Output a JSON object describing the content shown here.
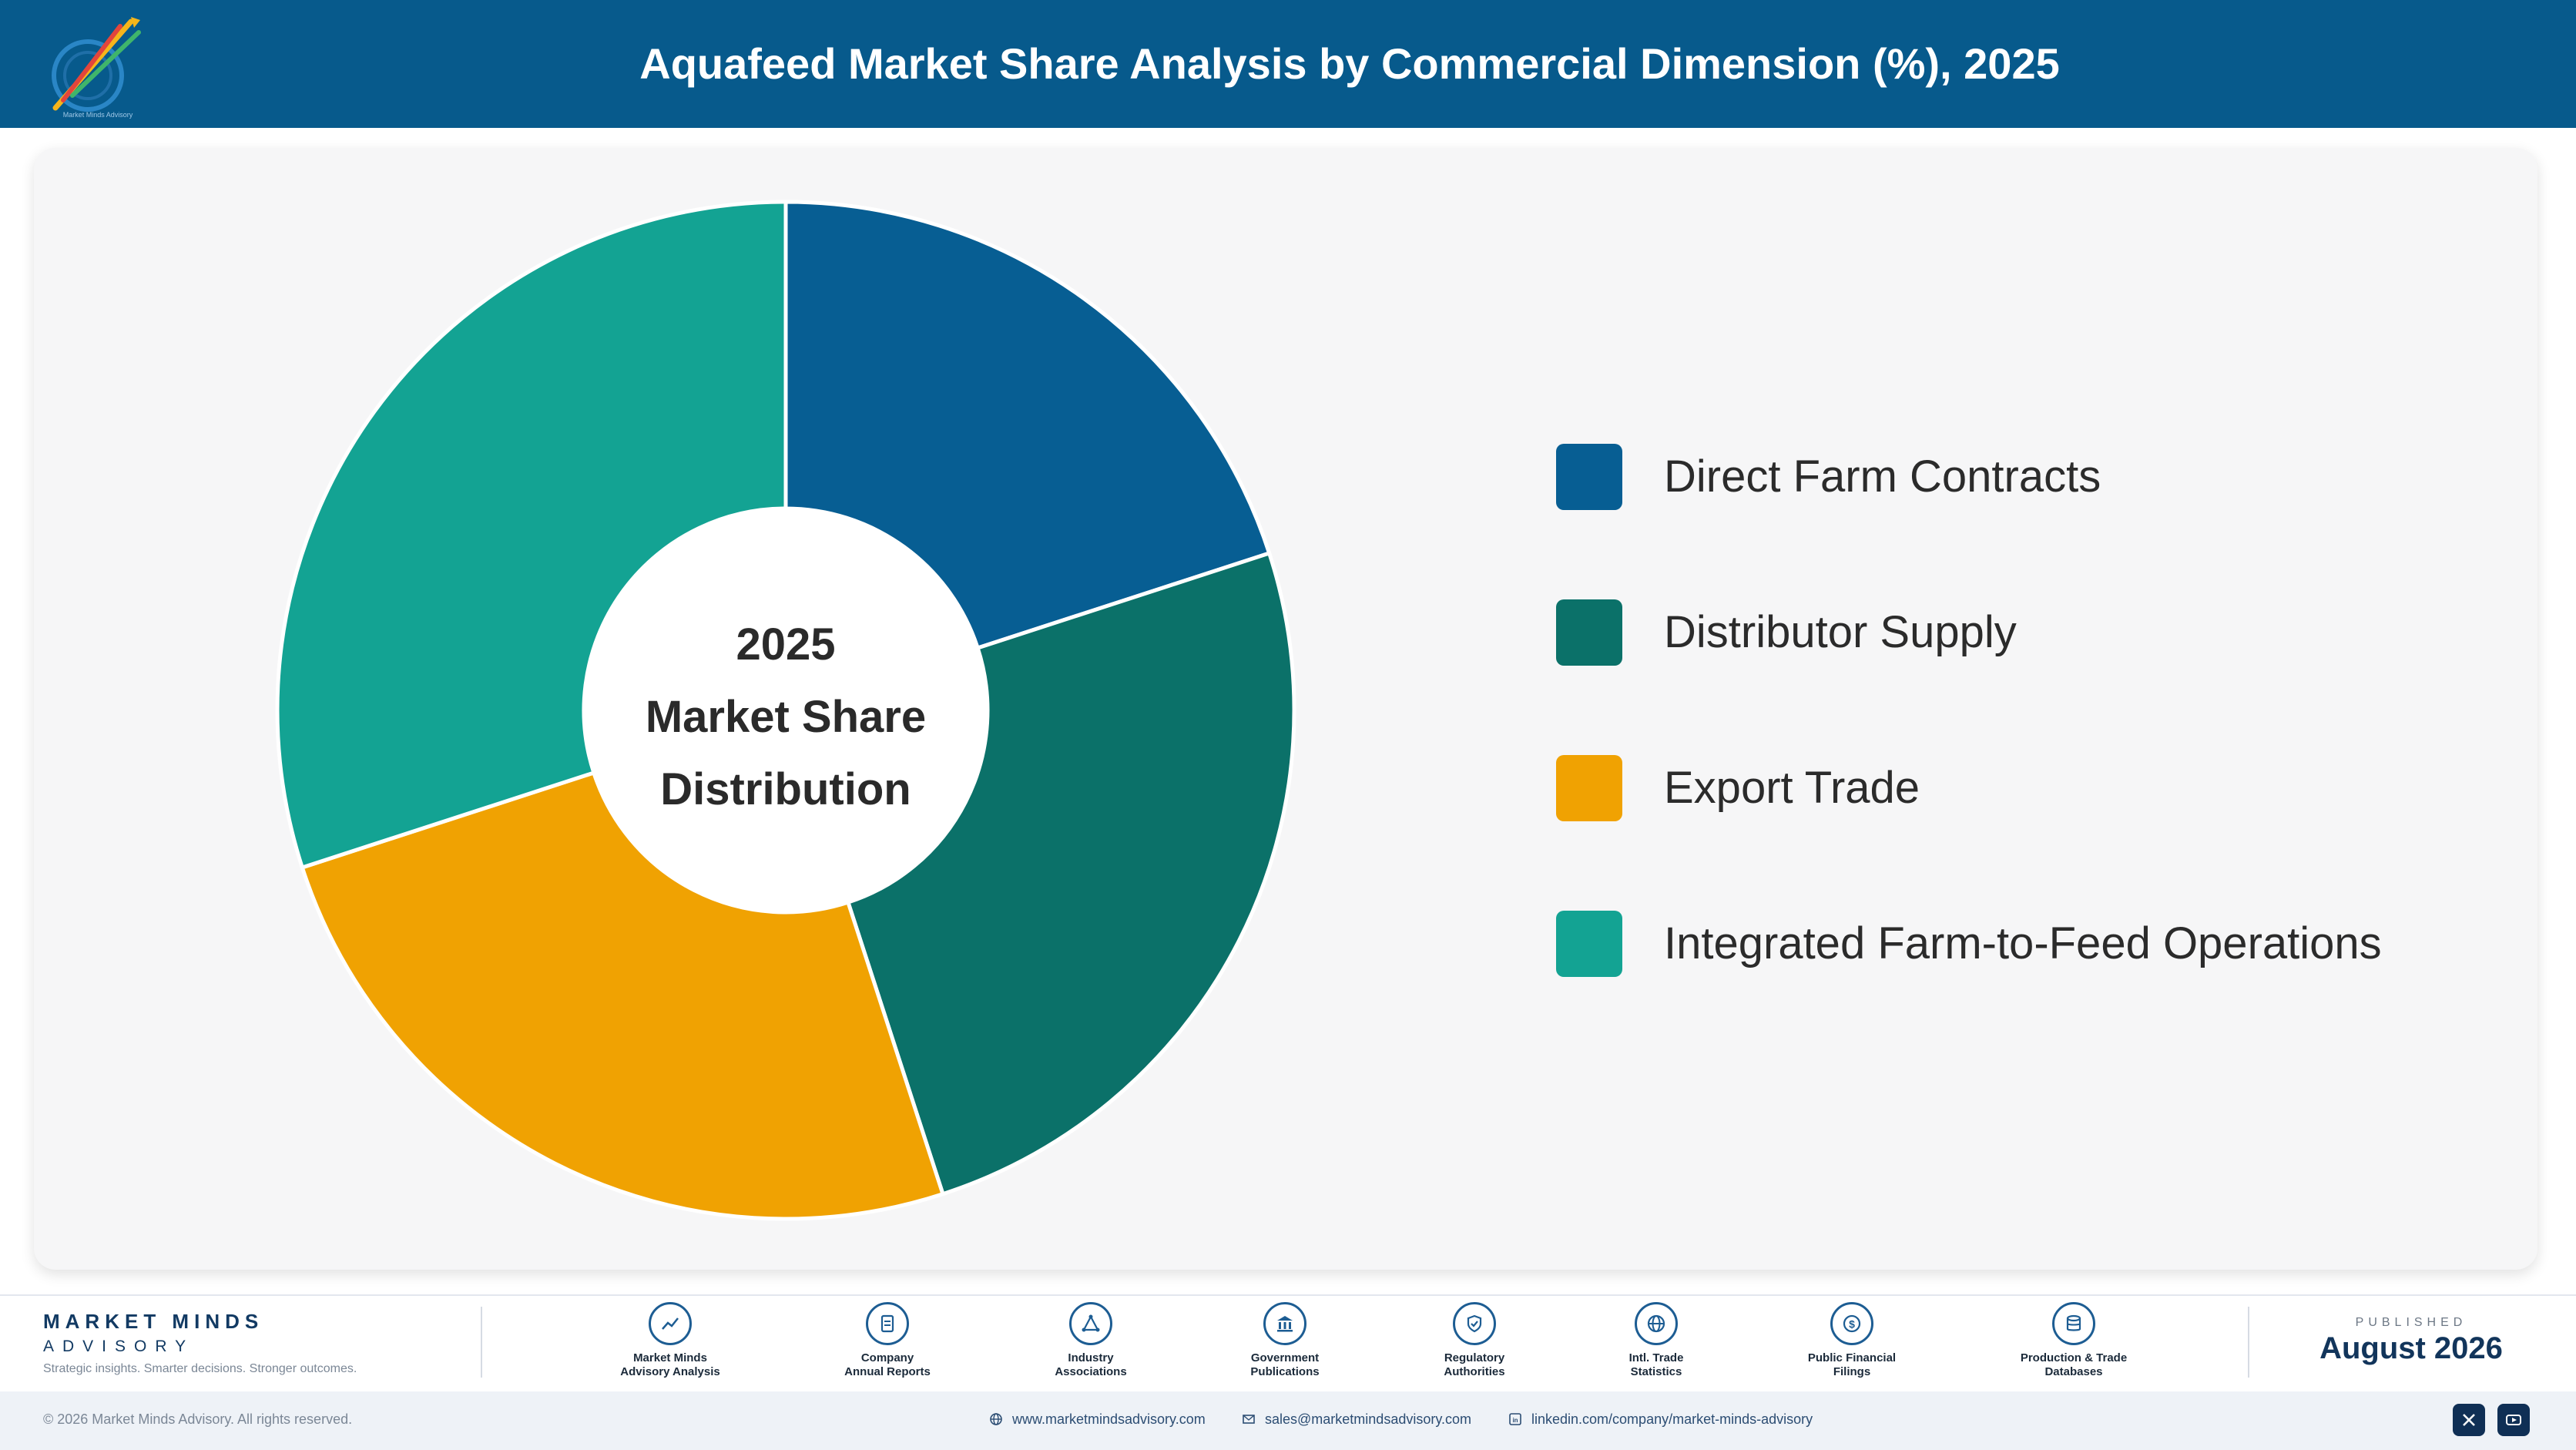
{
  "header": {
    "title": "Aquafeed Market Share Analysis by Commercial Dimension (%), 2025",
    "logo_icon": "market-minds-logo",
    "background": "#075a8c"
  },
  "chart_data": {
    "type": "pie",
    "donut": true,
    "center_label": [
      "2025",
      "Market Share",
      "Distribution"
    ],
    "categories": [
      "Direct Farm Contracts",
      "Distributor Supply",
      "Export Trade",
      "Integrated Farm-to-Feed Operations"
    ],
    "values": [
      20,
      25,
      25,
      30
    ],
    "colors": [
      "#075e93",
      "#0b7169",
      "#f0a202",
      "#13a393"
    ],
    "legend_position": "right",
    "start_angle": "top, clockwise"
  },
  "footer": {
    "brand": {
      "name": "MARKET MINDS",
      "sub": "ADVISORY",
      "tagline": "Strategic insights. Smarter decisions. Stronger outcomes."
    },
    "sources": [
      {
        "icon": "trend-chart-icon",
        "label": [
          "Market Minds",
          "Advisory Analysis"
        ]
      },
      {
        "icon": "document-icon",
        "label": [
          "Company",
          "Annual Reports"
        ]
      },
      {
        "icon": "network-icon",
        "label": [
          "Industry",
          "Associations"
        ]
      },
      {
        "icon": "government-building-icon",
        "label": [
          "Government",
          "Publications"
        ]
      },
      {
        "icon": "shield-check-icon",
        "label": [
          "Regulatory",
          "Authorities"
        ]
      },
      {
        "icon": "globe-icon",
        "label": [
          "Intl. Trade",
          "Statistics"
        ]
      },
      {
        "icon": "dollar-coin-icon",
        "label": [
          "Public Financial",
          "Filings"
        ]
      },
      {
        "icon": "database-icon",
        "label": [
          "Production & Trade",
          "Databases"
        ]
      }
    ],
    "published": {
      "caption": "PUBLISHED",
      "date": "August 2026"
    },
    "copyright": "© 2026 Market Minds Advisory. All rights reserved.",
    "contacts": {
      "website": "www.marketmindsadvisory.com",
      "email": "sales@marketmindsadvisory.com",
      "linkedin": "linkedin.com/company/market-minds-advisory"
    },
    "social": [
      "x-icon",
      "youtube-icon"
    ]
  }
}
